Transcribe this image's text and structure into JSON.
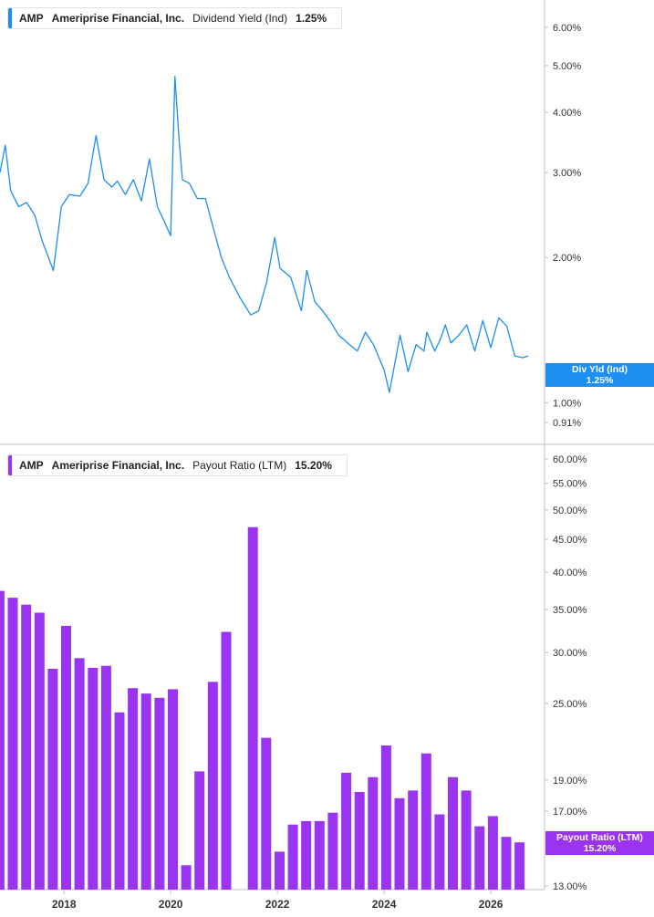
{
  "colors": {
    "yield": "#1f8ef1",
    "payout": "#9a34f0",
    "axis": "#bfbfbf",
    "text": "#333333"
  },
  "panels": {
    "top": {
      "ticker": "AMP",
      "company": "Ameriprise Financial, Inc.",
      "metric": "Dividend Yield (Ind)",
      "value": "1.25%",
      "tag_title": "Div Yld (Ind)",
      "tag_value": "1.25%"
    },
    "bottom": {
      "ticker": "AMP",
      "company": "Ameriprise Financial, Inc.",
      "metric": "Payout Ratio (LTM)",
      "value": "15.20%",
      "tag_title": "Payout Ratio (LTM)",
      "tag_value": "15.20%"
    }
  },
  "chart_data": [
    {
      "type": "line",
      "scale": "log",
      "ylim": [
        0.91,
        6.6
      ],
      "yticks": [
        {
          "v": 6,
          "label": "6.00%"
        },
        {
          "v": 5,
          "label": "5.00%"
        },
        {
          "v": 4,
          "label": "4.00%"
        },
        {
          "v": 3,
          "label": "3.00%"
        },
        {
          "v": 2,
          "label": "2.00%"
        },
        {
          "v": 1,
          "label": "1.00%"
        },
        {
          "v": 0.91,
          "label": "0.91%"
        }
      ],
      "x": [
        2016.8,
        2016.9,
        2017.0,
        2017.15,
        2017.3,
        2017.45,
        2017.6,
        2017.8,
        2017.95,
        2018.1,
        2018.3,
        2018.45,
        2018.6,
        2018.75,
        2018.9,
        2019.0,
        2019.15,
        2019.3,
        2019.45,
        2019.6,
        2019.75,
        2019.9,
        2020.0,
        2020.08,
        2020.15,
        2020.22,
        2020.35,
        2020.5,
        2020.65,
        2020.8,
        2020.95,
        2021.1,
        2021.3,
        2021.5,
        2021.65,
        2021.8,
        2021.95,
        2022.05,
        2022.25,
        2022.45,
        2022.55,
        2022.7,
        2022.85,
        2023.0,
        2023.15,
        2023.35,
        2023.5,
        2023.65,
        2023.8,
        2024.0,
        2024.1,
        2024.3,
        2024.45,
        2024.6,
        2024.75,
        2024.8,
        2024.95,
        2025.05,
        2025.15,
        2025.25,
        2025.4,
        2025.55,
        2025.7,
        2025.85,
        2026.0,
        2026.15,
        2026.3,
        2026.45,
        2026.6,
        2026.7
      ],
      "values": [
        3.0,
        3.42,
        2.75,
        2.55,
        2.6,
        2.45,
        2.15,
        1.88,
        2.55,
        2.7,
        2.68,
        2.85,
        3.58,
        2.9,
        2.8,
        2.88,
        2.7,
        2.9,
        2.62,
        3.2,
        2.55,
        2.35,
        2.22,
        4.75,
        3.6,
        2.9,
        2.85,
        2.65,
        2.65,
        2.3,
        2.0,
        1.82,
        1.65,
        1.52,
        1.55,
        1.78,
        2.2,
        1.9,
        1.82,
        1.55,
        1.88,
        1.62,
        1.55,
        1.47,
        1.38,
        1.32,
        1.28,
        1.4,
        1.32,
        1.17,
        1.05,
        1.38,
        1.16,
        1.32,
        1.28,
        1.4,
        1.28,
        1.35,
        1.45,
        1.33,
        1.38,
        1.45,
        1.28,
        1.48,
        1.3,
        1.5,
        1.44,
        1.25,
        1.24,
        1.25
      ],
      "xlim": [
        2016.8,
        2027.35
      ]
    },
    {
      "type": "bar",
      "scale": "log",
      "ylim": [
        13,
        62
      ],
      "yticks": [
        {
          "v": 60,
          "label": "60.00%"
        },
        {
          "v": 55,
          "label": "55.00%"
        },
        {
          "v": 50,
          "label": "50.00%"
        },
        {
          "v": 45,
          "label": "45.00%"
        },
        {
          "v": 40,
          "label": "40.00%"
        },
        {
          "v": 35,
          "label": "35.00%"
        },
        {
          "v": 30,
          "label": "30.00%"
        },
        {
          "v": 25,
          "label": "25.00%"
        },
        {
          "v": 19,
          "label": "19.00%"
        },
        {
          "v": 17,
          "label": "17.00%"
        },
        {
          "v": 13,
          "label": "13.00%"
        }
      ],
      "x": [
        2016.79,
        2017.04,
        2017.29,
        2017.54,
        2017.79,
        2018.04,
        2018.29,
        2018.54,
        2018.79,
        2019.04,
        2019.29,
        2019.54,
        2019.79,
        2020.04,
        2020.29,
        2020.54,
        2020.79,
        2021.04,
        2021.29,
        2021.54,
        2021.79,
        2022.04,
        2022.29,
        2022.54,
        2022.79,
        2023.04,
        2023.29,
        2023.54,
        2023.79,
        2024.04,
        2024.29,
        2024.54,
        2024.79,
        2025.04,
        2025.29,
        2025.54,
        2025.79,
        2026.04,
        2026.29,
        2026.54
      ],
      "values": [
        37.4,
        36.5,
        35.6,
        34.6,
        28.3,
        33.0,
        29.4,
        28.4,
        28.6,
        24.2,
        26.4,
        25.9,
        25.5,
        26.3,
        14.0,
        19.6,
        27.0,
        32.3,
        null,
        47.0,
        22.1,
        14.7,
        16.2,
        16.4,
        16.4,
        16.9,
        19.5,
        18.2,
        19.2,
        21.5,
        17.8,
        18.3,
        20.9,
        16.8,
        19.2,
        18.3,
        16.1,
        16.7,
        15.5,
        15.2
      ],
      "xlim": [
        2016.8,
        2027.35
      ]
    }
  ],
  "x_axis": {
    "ticks": [
      {
        "v": 2018,
        "label": "2018"
      },
      {
        "v": 2020,
        "label": "2020"
      },
      {
        "v": 2022,
        "label": "2022"
      },
      {
        "v": 2024,
        "label": "2024"
      },
      {
        "v": 2026,
        "label": "2026"
      }
    ]
  }
}
